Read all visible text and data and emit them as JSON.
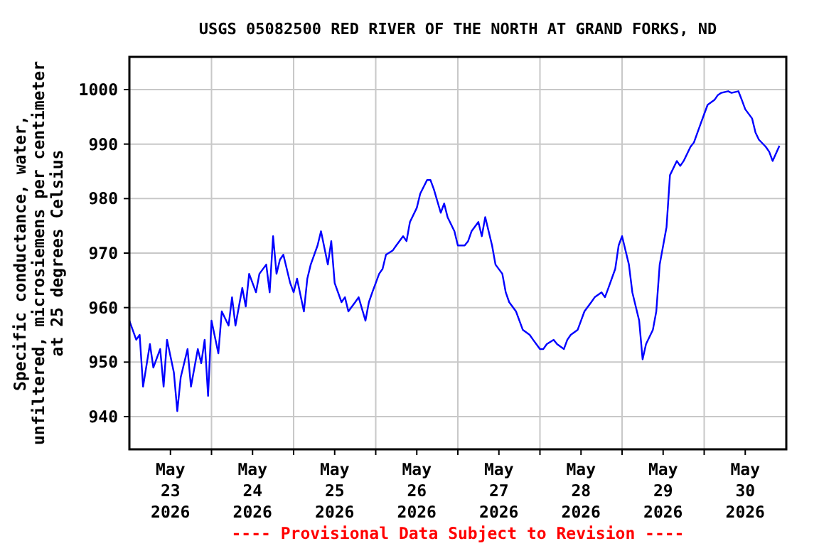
{
  "chart_data": {
    "type": "line",
    "title": "USGS 05082500 RED RIVER OF THE NORTH AT GRAND FORKS, ND",
    "ylabel": "Specific conductance, water,\nunfiltered, microsiemens per centimeter\nat 25 degrees Celsius",
    "annotations": [
      "---- Provisional Data Subject to Revision ----"
    ],
    "xlim": [
      "2026-05-23T00:00",
      "2026-05-31T00:00"
    ],
    "xticks": [
      {
        "value": "2026-05-23T12:00",
        "label": "May\n23\n2026"
      },
      {
        "value": "2026-05-24T00:00",
        "label": null
      },
      {
        "value": "2026-05-24T12:00",
        "label": "May\n24\n2026"
      },
      {
        "value": "2026-05-25T00:00",
        "label": null
      },
      {
        "value": "2026-05-25T12:00",
        "label": "May\n25\n2026"
      },
      {
        "value": "2026-05-26T00:00",
        "label": null
      },
      {
        "value": "2026-05-26T12:00",
        "label": "May\n26\n2026"
      },
      {
        "value": "2026-05-27T00:00",
        "label": null
      },
      {
        "value": "2026-05-27T12:00",
        "label": "May\n27\n2026"
      },
      {
        "value": "2026-05-28T00:00",
        "label": null
      },
      {
        "value": "2026-05-28T12:00",
        "label": "May\n28\n2026"
      },
      {
        "value": "2026-05-29T00:00",
        "label": null
      },
      {
        "value": "2026-05-29T12:00",
        "label": "May\n29\n2026"
      },
      {
        "value": "2026-05-30T00:00",
        "label": null
      },
      {
        "value": "2026-05-30T12:00",
        "label": "May\n30\n2026"
      }
    ],
    "ylim": [
      934,
      1006
    ],
    "yticks": [
      940,
      950,
      960,
      970,
      980,
      990,
      1000
    ],
    "grid": true,
    "line_style": "solid",
    "x": [
      "2026-05-23T00:00",
      "2026-05-23T02:00",
      "2026-05-23T03:00",
      "2026-05-23T04:00",
      "2026-05-23T06:00",
      "2026-05-23T07:00",
      "2026-05-23T09:00",
      "2026-05-23T10:00",
      "2026-05-23T11:00",
      "2026-05-23T13:00",
      "2026-05-23T14:00",
      "2026-05-23T15:00",
      "2026-05-23T17:00",
      "2026-05-23T18:00",
      "2026-05-23T20:00",
      "2026-05-23T21:00",
      "2026-05-23T22:00",
      "2026-05-23T23:00",
      "2026-05-24T00:00",
      "2026-05-24T02:00",
      "2026-05-24T03:00",
      "2026-05-24T05:00",
      "2026-05-24T06:00",
      "2026-05-24T07:00",
      "2026-05-24T09:00",
      "2026-05-24T10:00",
      "2026-05-24T11:00",
      "2026-05-24T13:00",
      "2026-05-24T14:00",
      "2026-05-24T16:00",
      "2026-05-24T17:00",
      "2026-05-24T18:00",
      "2026-05-24T19:00",
      "2026-05-24T20:00",
      "2026-05-24T21:00",
      "2026-05-24T23:00",
      "2026-05-25T00:00",
      "2026-05-25T01:00",
      "2026-05-25T03:00",
      "2026-05-25T04:00",
      "2026-05-25T05:00",
      "2026-05-25T07:00",
      "2026-05-25T08:00",
      "2026-05-25T10:00",
      "2026-05-25T11:00",
      "2026-05-25T12:00",
      "2026-05-25T14:00",
      "2026-05-25T15:00",
      "2026-05-25T16:00",
      "2026-05-25T18:00",
      "2026-05-25T19:00",
      "2026-05-25T21:00",
      "2026-05-25T22:00",
      "2026-05-25T23:00",
      "2026-05-26T01:00",
      "2026-05-26T02:00",
      "2026-05-26T03:00",
      "2026-05-26T05:00",
      "2026-05-26T06:00",
      "2026-05-26T08:00",
      "2026-05-26T09:00",
      "2026-05-26T10:00",
      "2026-05-26T12:00",
      "2026-05-26T13:00",
      "2026-05-26T15:00",
      "2026-05-26T16:00",
      "2026-05-26T17:00",
      "2026-05-26T19:00",
      "2026-05-26T20:00",
      "2026-05-26T21:00",
      "2026-05-26T23:00",
      "2026-05-27T00:00",
      "2026-05-27T02:00",
      "2026-05-27T03:00",
      "2026-05-27T04:00",
      "2026-05-27T06:00",
      "2026-05-27T07:00",
      "2026-05-27T08:00",
      "2026-05-27T10:00",
      "2026-05-27T11:00",
      "2026-05-27T13:00",
      "2026-05-27T14:00",
      "2026-05-27T15:00",
      "2026-05-27T17:00",
      "2026-05-27T18:00",
      "2026-05-27T19:00",
      "2026-05-27T21:00",
      "2026-05-27T22:00",
      "2026-05-28T00:00",
      "2026-05-28T01:00",
      "2026-05-28T02:00",
      "2026-05-28T04:00",
      "2026-05-28T05:00",
      "2026-05-28T07:00",
      "2026-05-28T08:00",
      "2026-05-28T09:00",
      "2026-05-28T11:00",
      "2026-05-28T12:00",
      "2026-05-28T13:00",
      "2026-05-28T15:00",
      "2026-05-28T16:00",
      "2026-05-28T18:00",
      "2026-05-28T19:00",
      "2026-05-28T20:00",
      "2026-05-28T22:00",
      "2026-05-28T23:00",
      "2026-05-29T00:00",
      "2026-05-29T02:00",
      "2026-05-29T03:00",
      "2026-05-29T05:00",
      "2026-05-29T06:00",
      "2026-05-29T07:00",
      "2026-05-29T09:00",
      "2026-05-29T10:00",
      "2026-05-29T11:00",
      "2026-05-29T13:00",
      "2026-05-29T14:00",
      "2026-05-29T16:00",
      "2026-05-29T17:00",
      "2026-05-29T18:00",
      "2026-05-29T20:00",
      "2026-05-29T21:00",
      "2026-05-29T23:00",
      "2026-05-30T00:00",
      "2026-05-30T01:00",
      "2026-05-30T03:00",
      "2026-05-30T04:00",
      "2026-05-30T05:00",
      "2026-05-30T07:00",
      "2026-05-30T08:00",
      "2026-05-30T10:00",
      "2026-05-30T11:00",
      "2026-05-30T12:00",
      "2026-05-30T14:00",
      "2026-05-30T15:00",
      "2026-05-30T16:00",
      "2026-05-30T18:00",
      "2026-05-30T19:00",
      "2026-05-30T20:00",
      "2026-05-30T22:00"
    ],
    "series": [
      {
        "color": "#0000ff",
        "values": [
          957.6,
          954.1,
          955,
          945.5,
          953.3,
          949,
          952.4,
          945.5,
          954.1,
          948.1,
          941,
          947.2,
          952.4,
          945.5,
          952.4,
          949.8,
          954.1,
          943.8,
          957.6,
          951.6,
          959.3,
          956.7,
          961.9,
          956.7,
          963.6,
          960.2,
          966.2,
          962.8,
          966.2,
          967.9,
          962.8,
          973.1,
          966.2,
          968.8,
          969.7,
          964.5,
          962.8,
          965.3,
          959.3,
          965.3,
          967.9,
          971.4,
          974,
          967.9,
          972.2,
          964.5,
          961,
          961.9,
          959.3,
          961,
          961.9,
          957.6,
          961,
          962.8,
          966.2,
          967.1,
          969.7,
          970.5,
          971.4,
          973.1,
          972.2,
          975.7,
          978.3,
          980.9,
          983.4,
          983.4,
          981.7,
          977.4,
          979.1,
          976.6,
          974,
          971.4,
          971.4,
          972.2,
          974,
          975.7,
          973.1,
          976.6,
          971.4,
          967.9,
          966.2,
          962.8,
          961,
          959.3,
          957.6,
          955.9,
          955,
          954.1,
          952.4,
          952.4,
          953.3,
          954.1,
          953.3,
          952.4,
          954.1,
          955,
          955.9,
          957.6,
          959.3,
          961,
          961.9,
          962.8,
          961.9,
          963.6,
          967.1,
          971.4,
          973.1,
          967.9,
          962.8,
          957.6,
          950.5,
          953.3,
          955.9,
          959.3,
          967.9,
          974.8,
          984.3,
          986.9,
          986,
          986.9,
          989.5,
          990.3,
          993.8,
          995.5,
          997.2,
          998.1,
          999,
          999.4,
          999.7,
          999.4,
          999.7,
          998.1,
          996.4,
          994.7,
          992.1,
          990.8,
          989.5,
          988.6,
          986.9,
          989.7
        ]
      }
    ]
  }
}
